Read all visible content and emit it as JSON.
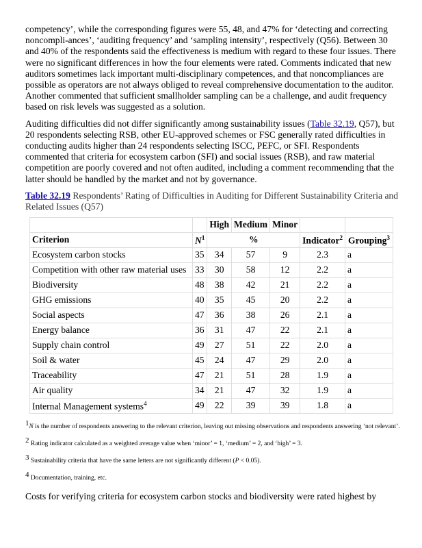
{
  "paragraphs": [
    "competency’, while the corresponding figures were 55, 48, and 47% for ‘detecting and correcting noncompli-ances’, ‘auditing frequency’ and ‘sampling intensity’, respectively (Q56). Between 30 and 40% of the respondents said the effectiveness is medium with regard to these four issues. There were no significant differences in how the four elements were rated. Comments indicated that new auditors sometimes lack important multi-disciplinary competences, and that noncompliances are possible as operators are not always obliged to reveal comprehensive documentation to the auditor. Another commented that sufficient smallholder sampling can be a challenge, and audit frequency based on risk levels was suggested as a solution."
  ],
  "p2": {
    "before": "Auditing difficulties did not differ significantly among sustainability issues (",
    "link": "Table 32.19",
    "after": ", Q57), but 20 respondents selecting RSB, other EU-approved schemes or FSC generally rated difficulties in conducting audits higher than 24 respondents selecting ISCC, PEFC, or SFI. Respondents commented that criteria for ecosystem carbon (SFI) and social issues (RSB), and raw material competition are poorly covered and not often audited, including a comment recommending that the latter should be handled by the market and not by governance."
  },
  "caption": {
    "link": "Table 32.19",
    "text": " Respondents’ Rating of Difficulties in Auditing for Different Sustainability Criteria and Related Issues (Q57)"
  },
  "table": {
    "top_headers": [
      "High",
      "Medium",
      "Minor"
    ],
    "headers": {
      "criterion": "Criterion",
      "n": "N",
      "n_sup": "1",
      "pct": "%",
      "indicator": "Indicator",
      "indicator_sup": "2",
      "grouping": "Grouping",
      "grouping_sup": "3"
    },
    "rows": [
      [
        "Ecosystem carbon stocks",
        "35",
        "34",
        "57",
        "9",
        "2.3",
        "a"
      ],
      [
        "Competition with other raw material uses",
        "33",
        "30",
        "58",
        "12",
        "2.2",
        "a"
      ],
      [
        "Biodiversity",
        "48",
        "38",
        "42",
        "21",
        "2.2",
        "a"
      ],
      [
        "GHG emissions",
        "40",
        "35",
        "45",
        "20",
        "2.2",
        "a"
      ],
      [
        "Social aspects",
        "47",
        "36",
        "38",
        "26",
        "2.1",
        "a"
      ],
      [
        "Energy balance",
        "36",
        "31",
        "47",
        "22",
        "2.1",
        "a"
      ],
      [
        "Supply chain control",
        "49",
        "27",
        "51",
        "22",
        "2.0",
        "a"
      ],
      [
        "Soil & water",
        "45",
        "24",
        "47",
        "29",
        "2.0",
        "a"
      ],
      [
        "Traceability",
        "47",
        "21",
        "51",
        "28",
        "1.9",
        "a"
      ],
      [
        "Air quality",
        "34",
        "21",
        "47",
        "32",
        "1.9",
        "a"
      ],
      [
        "Internal Management systems",
        "49",
        "22",
        "39",
        "39",
        "1.8",
        "a"
      ]
    ],
    "last_row_sup": "4"
  },
  "footnotes": [
    {
      "num": "1",
      "italic": "N",
      "text": " is the number of respondents answering to the relevant criterion, leaving out missing observations and respondents answering ‘not relevant’."
    },
    {
      "num": "2",
      "text": " Rating indicator calculated as a weighted average value when ‘minor’ = 1, ‘medium’ = 2, and ‘high’ = 3."
    },
    {
      "num": "3",
      "text": " Sustainability criteria that have the same letters are not significantly different (",
      "italic": "P",
      "text2": " < 0.05)."
    },
    {
      "num": "4",
      "text": " Documentation, training, etc."
    }
  ],
  "last_paragraph": "Costs for verifying criteria for ecosystem carbon stocks and biodiversity were rated highest by"
}
